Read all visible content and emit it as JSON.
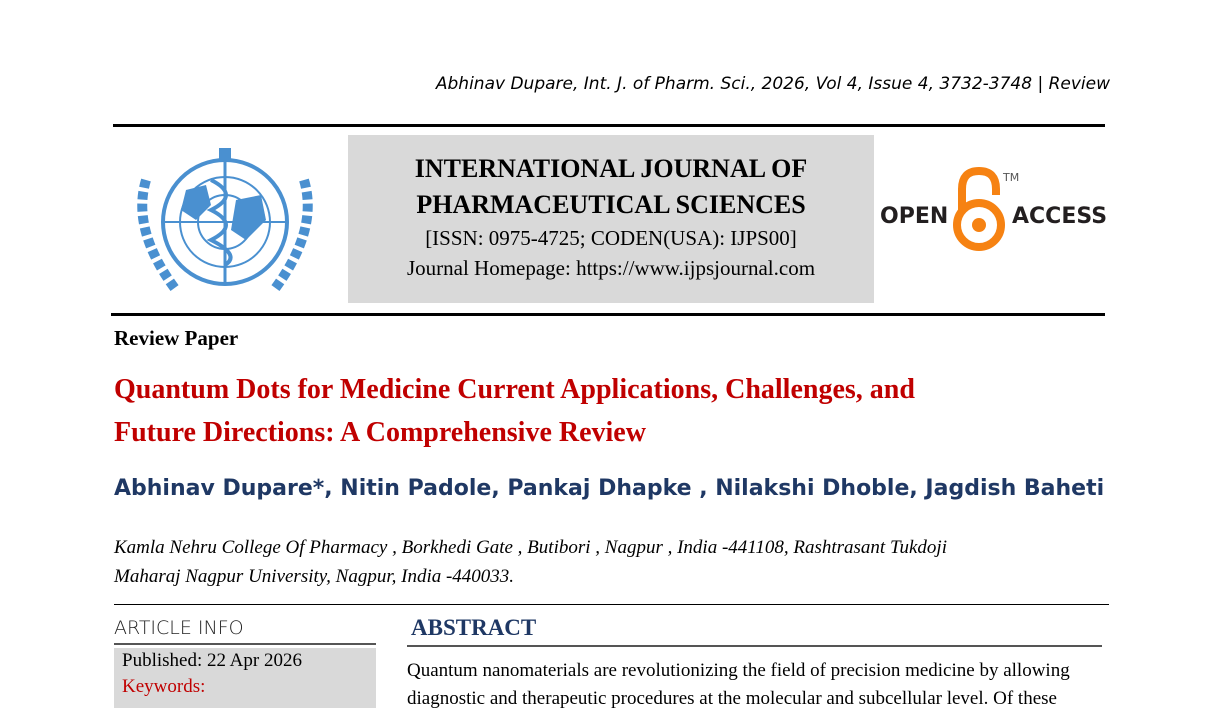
{
  "running_header": "Abhinav Dupare, Int. J. of Pharm. Sci., 2026, Vol 4, Issue 4, 3732-3748 | Review",
  "journal": {
    "name_line1": "INTERNATIONAL JOURNAL OF",
    "name_line2": "PHARMACEUTICAL SCIENCES",
    "issn": "[ISSN: 0975-4725; CODEN(USA): IJPS00]",
    "homepage": "Journal Homepage: https://www.ijpsjournal.com"
  },
  "open_access_logo": {
    "left": "OPEN",
    "right": "ACCESS",
    "tm": "TM",
    "color": "#f68212"
  },
  "paper_type": "Review Paper",
  "title_line1": "Quantum Dots for Medicine Current Applications, Challenges, and",
  "title_line2": "Future Directions: A Comprehensive Review",
  "authors": "Abhinav Dupare*, Nitin Padole, Pankaj Dhapke , Nilakshi Dhoble, Jagdish Baheti",
  "affiliation_line1": "Kamla Nehru College Of Pharmacy , Borkhedi Gate , Butibori , Nagpur , India -441108, Rashtrasant Tukdoji",
  "affiliation_line2": "Maharaj Nagpur University, Nagpur, India -440033.",
  "article_info": {
    "heading": "ARTICLE INFO",
    "published": "Published: 22 Apr 2026",
    "keywords_label": "Keywords:"
  },
  "abstract": {
    "heading": "ABSTRACT",
    "line1": "Quantum nanomaterials are revolutionizing the field of precision medicine by allowing",
    "line2": "diagnostic and therapeutic procedures at the molecular and subcellular level. Of these"
  },
  "colors": {
    "title_red": "#c00000",
    "navy": "#1f3864",
    "banner_gray": "#d9d9d9",
    "emblem_blue": "#4a90d0"
  }
}
